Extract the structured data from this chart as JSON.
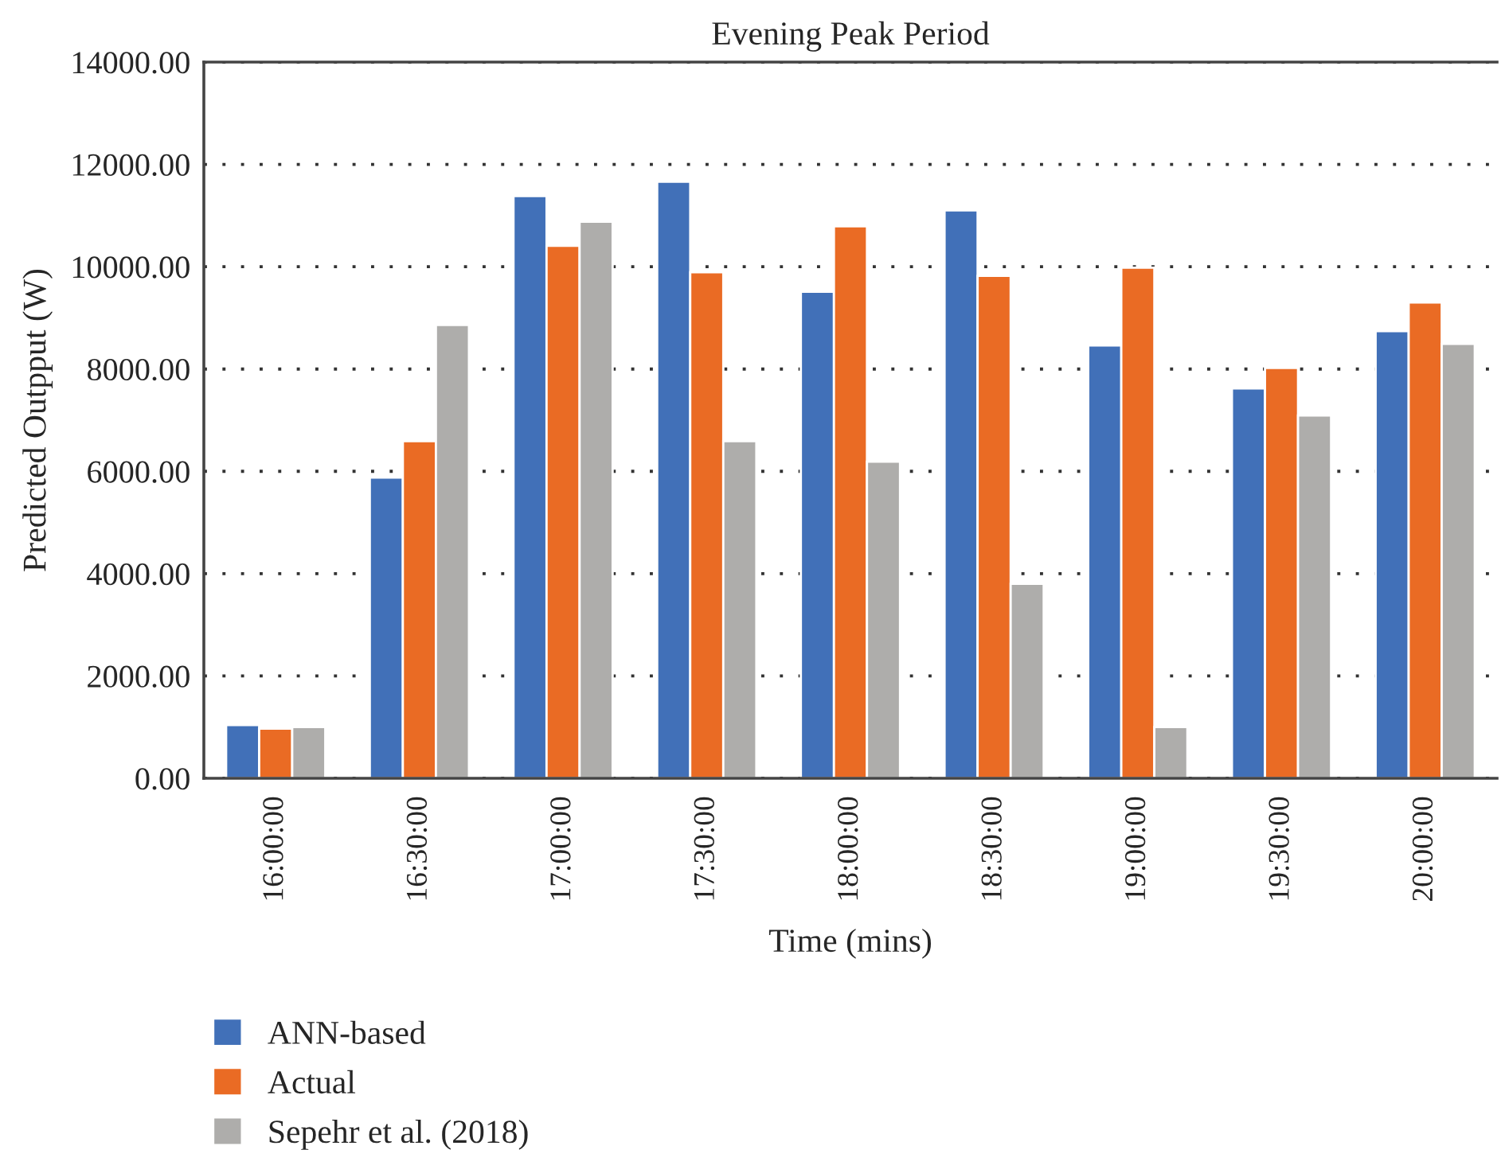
{
  "chart_data": {
    "type": "bar",
    "title": "Evening Peak Period",
    "xlabel": "Time (mins)",
    "ylabel": "Predicted Outpput (W)",
    "categories": [
      "16:00:00",
      "16:30:00",
      "17:00:00",
      "17:30:00",
      "18:00:00",
      "18:30:00",
      "19:00:00",
      "19:30:00",
      "20:00:00"
    ],
    "series": [
      {
        "name": "ANN-based",
        "color": "#4170b8",
        "values": [
          1040,
          5880,
          11380,
          11660,
          9510,
          11100,
          8460,
          7620,
          8740
        ]
      },
      {
        "name": "Actual",
        "color": "#ea6b24",
        "values": [
          970,
          6590,
          10410,
          9890,
          10790,
          9820,
          9980,
          8020,
          9300
        ]
      },
      {
        "name": "Sepehr et al. (2018)",
        "color": "#aeadab",
        "values": [
          1000,
          8860,
          10880,
          6590,
          6190,
          3800,
          1000,
          7090,
          8490
        ]
      }
    ],
    "ylim": [
      0,
      14000
    ],
    "yticks": [
      {
        "value": 0,
        "label": "0.00"
      },
      {
        "value": 2000,
        "label": "2000.00"
      },
      {
        "value": 4000,
        "label": "4000.00"
      },
      {
        "value": 6000,
        "label": "6000.00"
      },
      {
        "value": 8000,
        "label": "8000.00"
      },
      {
        "value": 10000,
        "label": "10000.00"
      },
      {
        "value": 12000,
        "label": "12000.00"
      },
      {
        "value": 14000,
        "label": "14000.00"
      }
    ],
    "grid": "y",
    "legend": "bottom left"
  }
}
